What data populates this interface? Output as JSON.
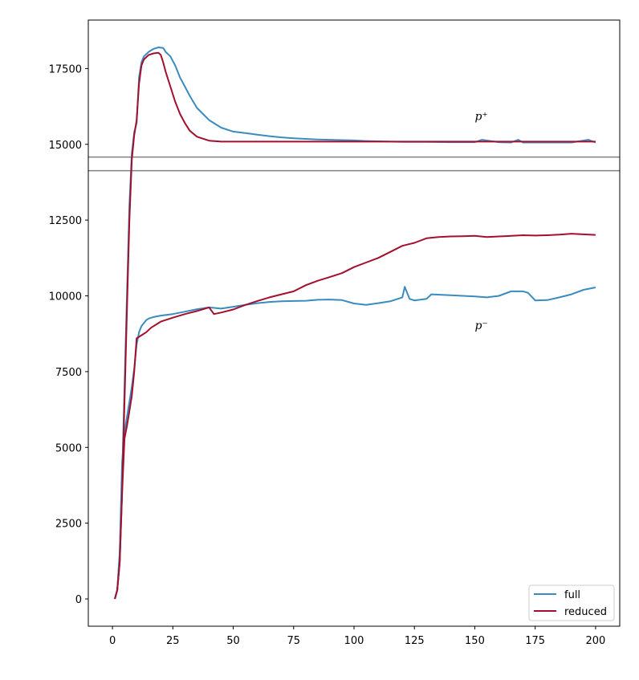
{
  "chart_data": {
    "type": "line",
    "xlim": [
      -10,
      210
    ],
    "ylim": [
      -900,
      19100
    ],
    "x_ticks": [
      0,
      25,
      50,
      75,
      100,
      125,
      150,
      175,
      200
    ],
    "y_ticks": [
      0,
      2500,
      5000,
      7500,
      10000,
      12500,
      15000,
      17500
    ],
    "hlines": [
      14580,
      14130
    ],
    "hline_color": "#808080",
    "legend_position": "lower-right",
    "annotations": [
      {
        "text": "p⁺",
        "x": 150,
        "y": 15800
      },
      {
        "text": "p⁻",
        "x": 150,
        "y": 8900
      }
    ],
    "series": [
      {
        "name": "full",
        "color": "#3a8bbf",
        "points": [
          [
            1,
            0
          ],
          [
            2,
            300
          ],
          [
            3,
            1500
          ],
          [
            4,
            4500
          ],
          [
            5,
            5500
          ],
          [
            6,
            6000
          ],
          [
            7,
            6500
          ],
          [
            8,
            7000
          ],
          [
            9,
            7600
          ],
          [
            10,
            8400
          ],
          [
            11,
            8800
          ],
          [
            12,
            9000
          ],
          [
            13,
            9100
          ],
          [
            14,
            9200
          ],
          [
            15,
            9250
          ],
          [
            17,
            9300
          ],
          [
            20,
            9350
          ],
          [
            25,
            9400
          ],
          [
            30,
            9480
          ],
          [
            35,
            9560
          ],
          [
            40,
            9620
          ],
          [
            45,
            9580
          ],
          [
            50,
            9640
          ],
          [
            55,
            9700
          ],
          [
            60,
            9760
          ],
          [
            65,
            9800
          ],
          [
            70,
            9820
          ],
          [
            75,
            9830
          ],
          [
            80,
            9840
          ],
          [
            85,
            9870
          ],
          [
            90,
            9880
          ],
          [
            95,
            9860
          ],
          [
            100,
            9750
          ],
          [
            105,
            9700
          ],
          [
            110,
            9760
          ],
          [
            115,
            9820
          ],
          [
            120,
            9950
          ],
          [
            121,
            10300
          ],
          [
            123,
            9900
          ],
          [
            125,
            9850
          ],
          [
            130,
            9900
          ],
          [
            132,
            10050
          ],
          [
            140,
            10020
          ],
          [
            150,
            9980
          ],
          [
            155,
            9950
          ],
          [
            160,
            10000
          ],
          [
            165,
            10150
          ],
          [
            170,
            10150
          ],
          [
            172,
            10100
          ],
          [
            175,
            9850
          ],
          [
            180,
            9860
          ],
          [
            185,
            9950
          ],
          [
            190,
            10050
          ],
          [
            195,
            10200
          ],
          [
            200,
            10280
          ]
        ]
      },
      {
        "name": "reduced",
        "color": "#a3102e",
        "points": [
          [
            1,
            0
          ],
          [
            2,
            300
          ],
          [
            3,
            1200
          ],
          [
            4,
            3500
          ],
          [
            5,
            5300
          ],
          [
            6,
            5700
          ],
          [
            7,
            6200
          ],
          [
            8,
            6700
          ],
          [
            9,
            7500
          ],
          [
            10,
            8600
          ],
          [
            12,
            8700
          ],
          [
            14,
            8800
          ],
          [
            16,
            8950
          ],
          [
            18,
            9050
          ],
          [
            20,
            9150
          ],
          [
            25,
            9280
          ],
          [
            30,
            9400
          ],
          [
            35,
            9500
          ],
          [
            40,
            9620
          ],
          [
            42,
            9400
          ],
          [
            45,
            9450
          ],
          [
            50,
            9550
          ],
          [
            55,
            9700
          ],
          [
            60,
            9830
          ],
          [
            65,
            9950
          ],
          [
            70,
            10050
          ],
          [
            75,
            10150
          ],
          [
            80,
            10350
          ],
          [
            85,
            10500
          ],
          [
            90,
            10620
          ],
          [
            95,
            10750
          ],
          [
            100,
            10950
          ],
          [
            105,
            11100
          ],
          [
            110,
            11250
          ],
          [
            115,
            11450
          ],
          [
            120,
            11650
          ],
          [
            125,
            11750
          ],
          [
            130,
            11900
          ],
          [
            135,
            11940
          ],
          [
            140,
            11960
          ],
          [
            145,
            11970
          ],
          [
            150,
            11980
          ],
          [
            155,
            11940
          ],
          [
            160,
            11960
          ],
          [
            165,
            11980
          ],
          [
            170,
            12000
          ],
          [
            175,
            11990
          ],
          [
            180,
            12000
          ],
          [
            185,
            12020
          ],
          [
            190,
            12050
          ],
          [
            195,
            12030
          ],
          [
            200,
            12010
          ]
        ]
      },
      {
        "name": "",
        "color": "#3a8bbf",
        "points": [
          [
            1,
            0
          ],
          [
            2,
            300
          ],
          [
            3,
            1500
          ],
          [
            4,
            4000
          ],
          [
            5,
            7000
          ],
          [
            6,
            10000
          ],
          [
            7,
            13000
          ],
          [
            8,
            14700
          ],
          [
            9,
            15400
          ],
          [
            10,
            15700
          ],
          [
            11,
            17200
          ],
          [
            12,
            17700
          ],
          [
            13,
            17900
          ],
          [
            15,
            18050
          ],
          [
            17,
            18150
          ],
          [
            19,
            18200
          ],
          [
            21,
            18180
          ],
          [
            22,
            18050
          ],
          [
            24,
            17900
          ],
          [
            26,
            17600
          ],
          [
            28,
            17200
          ],
          [
            30,
            16900
          ],
          [
            32,
            16600
          ],
          [
            35,
            16200
          ],
          [
            40,
            15800
          ],
          [
            45,
            15550
          ],
          [
            50,
            15420
          ],
          [
            55,
            15370
          ],
          [
            60,
            15320
          ],
          [
            65,
            15270
          ],
          [
            70,
            15230
          ],
          [
            75,
            15200
          ],
          [
            80,
            15180
          ],
          [
            85,
            15160
          ],
          [
            90,
            15150
          ],
          [
            95,
            15140
          ],
          [
            100,
            15130
          ],
          [
            105,
            15110
          ],
          [
            110,
            15100
          ],
          [
            115,
            15090
          ],
          [
            120,
            15080
          ],
          [
            130,
            15080
          ],
          [
            140,
            15070
          ],
          [
            150,
            15070
          ],
          [
            153,
            15150
          ],
          [
            160,
            15070
          ],
          [
            165,
            15060
          ],
          [
            168,
            15150
          ],
          [
            170,
            15060
          ],
          [
            180,
            15060
          ],
          [
            190,
            15060
          ],
          [
            197,
            15150
          ],
          [
            200,
            15060
          ]
        ]
      },
      {
        "name": "",
        "color": "#a3102e",
        "points": [
          [
            1,
            0
          ],
          [
            2,
            300
          ],
          [
            3,
            1200
          ],
          [
            4,
            3500
          ],
          [
            5,
            6500
          ],
          [
            6,
            9500
          ],
          [
            7,
            12500
          ],
          [
            8,
            14500
          ],
          [
            9,
            15300
          ],
          [
            10,
            15800
          ],
          [
            11,
            17000
          ],
          [
            12,
            17600
          ],
          [
            13,
            17800
          ],
          [
            15,
            17950
          ],
          [
            17,
            18000
          ],
          [
            19,
            18020
          ],
          [
            20,
            17950
          ],
          [
            21,
            17700
          ],
          [
            22,
            17400
          ],
          [
            24,
            16900
          ],
          [
            26,
            16400
          ],
          [
            28,
            16000
          ],
          [
            30,
            15700
          ],
          [
            32,
            15450
          ],
          [
            35,
            15250
          ],
          [
            40,
            15120
          ],
          [
            45,
            15090
          ],
          [
            50,
            15090
          ],
          [
            60,
            15090
          ],
          [
            80,
            15090
          ],
          [
            100,
            15090
          ],
          [
            120,
            15090
          ],
          [
            140,
            15090
          ],
          [
            160,
            15090
          ],
          [
            180,
            15090
          ],
          [
            200,
            15090
          ]
        ]
      }
    ]
  }
}
